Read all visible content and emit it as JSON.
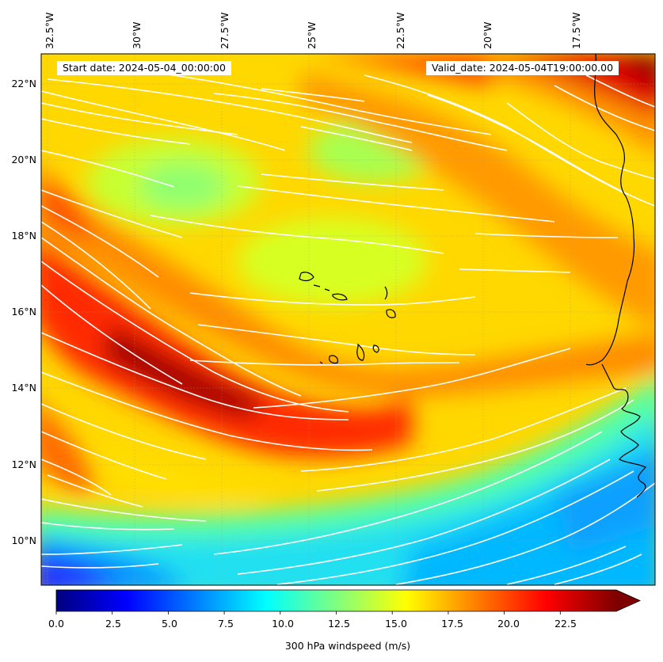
{
  "map": {
    "start_date": "Start date: 2024-05-04_00:00:00",
    "valid_date": "Valid_date: 2024-05-04T19:00:00.00",
    "longitude_labels": [
      "32.5°W",
      "30°W",
      "27.5°W",
      "25°W",
      "22.5°W",
      "20°W",
      "17.5°W"
    ],
    "latitude_labels": [
      "22°N",
      "20°N",
      "18°N",
      "16°N",
      "14°N",
      "12°N",
      "10°N"
    ],
    "lon_range": [
      -33.0,
      -15.5
    ],
    "lat_range": [
      8.9,
      22.8
    ],
    "field": "300 hPa windspeed",
    "wind_flow": "west-north-west to east-south-east, curving north-eastward in the south-east",
    "features": [
      "Cape Verde Islands",
      "West African coastline"
    ]
  },
  "colorbar": {
    "title": "300 hPa windspeed (m/s)",
    "tick_labels": [
      "0.0",
      "2.5",
      "5.0",
      "7.5",
      "10.0",
      "12.5",
      "15.0",
      "17.5",
      "20.0",
      "22.5"
    ],
    "range": [
      0,
      25
    ],
    "extend": "max",
    "colormap": "jet",
    "colors": [
      "#00007f",
      "#0000ff",
      "#007fff",
      "#00ffff",
      "#7fff7f",
      "#ffff00",
      "#ff7f00",
      "#ff0000",
      "#7f0000"
    ]
  }
}
